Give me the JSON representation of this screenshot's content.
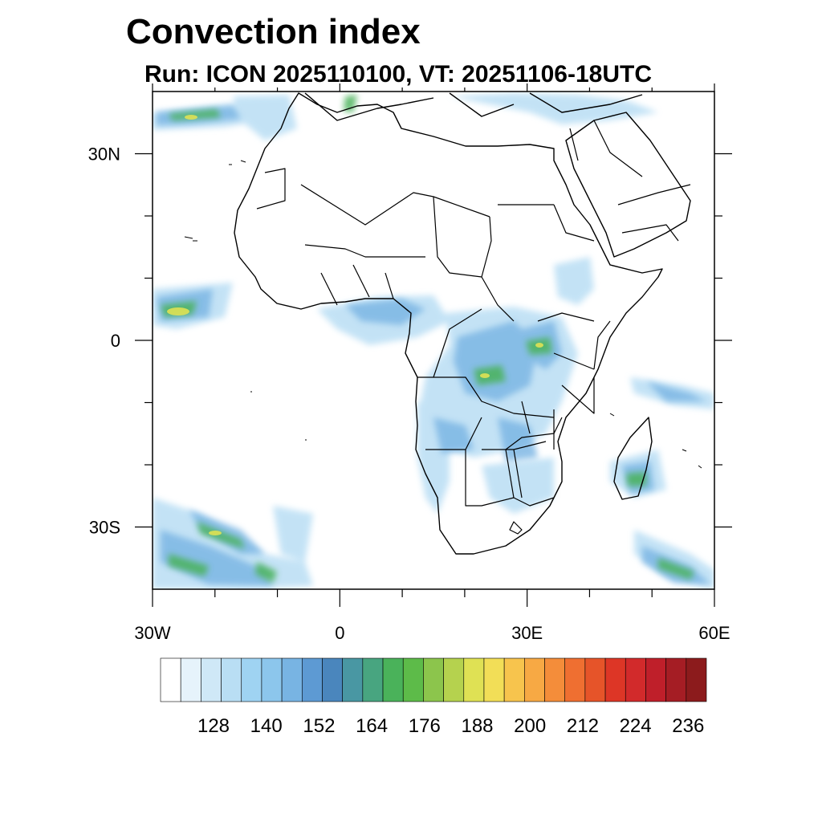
{
  "title": "Convection index",
  "subtitle": "Run: ICON 2025110100,  VT: 20251106-18UTC",
  "map": {
    "lon_range": [
      -30,
      60
    ],
    "lat_range": [
      -40,
      40
    ],
    "x_ticks": [
      {
        "value": -30,
        "label": "30W"
      },
      {
        "value": 0,
        "label": "0"
      },
      {
        "value": 30,
        "label": "30E"
      },
      {
        "value": 60,
        "label": "60E"
      }
    ],
    "y_ticks": [
      {
        "value": 30,
        "label": "30N"
      },
      {
        "value": 0,
        "label": "0"
      },
      {
        "value": -30,
        "label": "30S"
      }
    ],
    "minor_x_ticks": [
      -20,
      -10,
      10,
      20,
      40,
      50
    ],
    "minor_y_ticks": [
      20,
      10,
      -10,
      -20
    ],
    "coastline_color": "#000000"
  },
  "colorbar": {
    "colors": [
      "#ffffff",
      "#e6f3fb",
      "#cfe8f7",
      "#b9def4",
      "#9fd3f2",
      "#8cc6ec",
      "#78b4e3",
      "#5d9ad3",
      "#4a86bd",
      "#4997a3",
      "#48a580",
      "#4ab25a",
      "#5dbb49",
      "#8cc54c",
      "#b5d24e",
      "#dfe154",
      "#f2de57",
      "#f7c44d",
      "#f7a944",
      "#f48d3a",
      "#ef6f31",
      "#e65429",
      "#dd3626",
      "#d22a2b",
      "#bf1f2a",
      "#a51d24",
      "#8c1b1c"
    ],
    "labels": [
      "128",
      "140",
      "152",
      "164",
      "176",
      "188",
      "200",
      "212",
      "224",
      "236"
    ]
  }
}
